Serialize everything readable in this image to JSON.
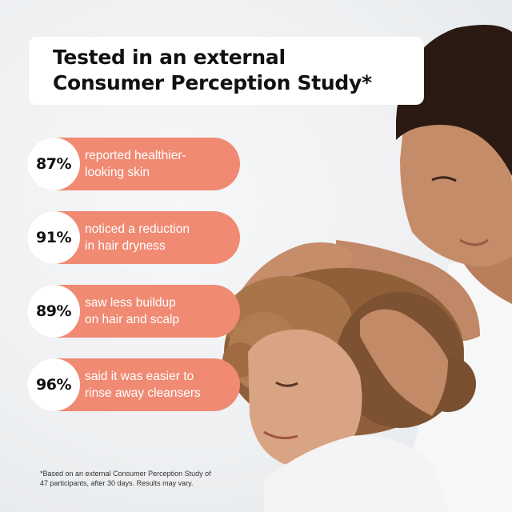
{
  "title": {
    "line1": "Tested in an external",
    "line2": "Consumer Perception Study*"
  },
  "stats": [
    {
      "percent": "87%",
      "line1": "reported healthier-",
      "line2": "looking skin"
    },
    {
      "percent": "91%",
      "line1": "noticed a reduction",
      "line2": "in hair dryness"
    },
    {
      "percent": "89%",
      "line1": "saw less buildup",
      "line2": "on hair and scalp"
    },
    {
      "percent": "96%",
      "line1": "said it was easier to",
      "line2": "rinse away cleansers"
    }
  ],
  "footnote": {
    "line1": "*Based on an external Consumer Perception Study of",
    "line2": "47 participants, after 30 days. Results may vary."
  },
  "colors": {
    "accent": "#f08a73",
    "background": "#eceff1",
    "text": "#111111"
  }
}
